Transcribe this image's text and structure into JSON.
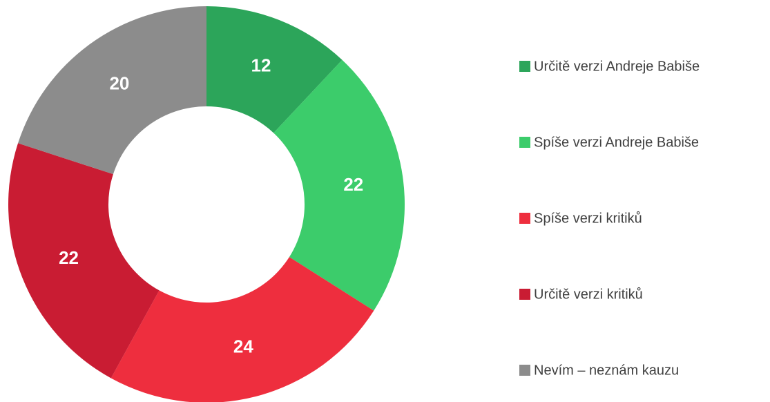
{
  "chart_data": {
    "type": "donut",
    "categories": [
      "Určitě verzi Andreje Babiše",
      "Spíše verzi Andreje Babiše",
      "Spíše verzi kritiků",
      "Určitě verzi kritiků",
      "Nevím – neznám kauzu"
    ],
    "values": [
      12,
      22,
      24,
      22,
      20
    ],
    "colors": [
      "#2ca55a",
      "#3ccc6b",
      "#ee2e3e",
      "#c91c33",
      "#8c8c8c"
    ],
    "legend": "right"
  }
}
